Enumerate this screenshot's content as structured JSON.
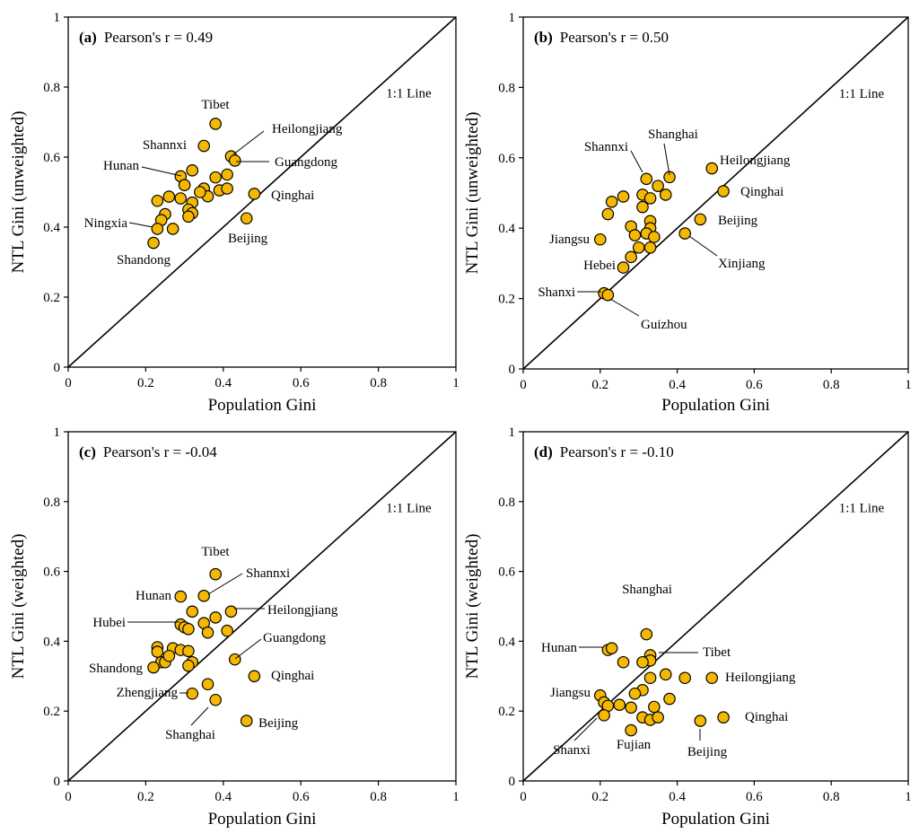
{
  "colors": {
    "marker_fill": "#F5B800",
    "marker_stroke": "#000000",
    "axis": "#000000"
  },
  "chart_data": [
    {
      "type": "scatter",
      "panel_letter": "(a)",
      "stat_text": "Pearson's r  = 0.49",
      "xlabel": "Population Gini",
      "ylabel": "NTL Gini (unweighted)",
      "xlim": [
        0,
        1
      ],
      "ylim": [
        0,
        1
      ],
      "xticks": [
        "0",
        "0.2",
        "0.4",
        "0.6",
        "0.8",
        "1"
      ],
      "yticks": [
        "0",
        "0.2",
        "0.4",
        "0.6",
        "0.8",
        "1"
      ],
      "grid": false,
      "reference_line": "1:1 Line",
      "x": [
        0.38,
        0.35,
        0.42,
        0.43,
        0.32,
        0.29,
        0.3,
        0.38,
        0.41,
        0.35,
        0.36,
        0.39,
        0.41,
        0.48,
        0.34,
        0.32,
        0.31,
        0.29,
        0.26,
        0.23,
        0.32,
        0.31,
        0.25,
        0.24,
        0.23,
        0.27,
        0.22,
        0.46
      ],
      "y": [
        0.695,
        0.632,
        0.602,
        0.59,
        0.562,
        0.545,
        0.52,
        0.542,
        0.55,
        0.51,
        0.488,
        0.505,
        0.51,
        0.495,
        0.5,
        0.47,
        0.45,
        0.482,
        0.487,
        0.475,
        0.44,
        0.43,
        0.437,
        0.42,
        0.395,
        0.395,
        0.355,
        0.425
      ],
      "labels": [
        {
          "text": "Tibet",
          "x": 0.38,
          "y": 0.695
        },
        {
          "text": "Shannxi",
          "x": 0.35,
          "y": 0.632
        },
        {
          "text": "Heilongjiang",
          "x": 0.42,
          "y": 0.602
        },
        {
          "text": "Guangdong",
          "x": 0.43,
          "y": 0.59
        },
        {
          "text": "Hunan",
          "x": 0.29,
          "y": 0.545
        },
        {
          "text": "Qinghai",
          "x": 0.48,
          "y": 0.495
        },
        {
          "text": "Ningxia",
          "x": 0.23,
          "y": 0.395
        },
        {
          "text": "Beijing",
          "x": 0.46,
          "y": 0.425
        },
        {
          "text": "Shandong",
          "x": 0.22,
          "y": 0.355
        }
      ]
    },
    {
      "type": "scatter",
      "panel_letter": "(b)",
      "stat_text": "Pearson's r = 0.50",
      "xlabel": "Population Gini",
      "ylabel": "NTL Gini (unweighted)",
      "xlim": [
        0,
        1
      ],
      "ylim": [
        0,
        1
      ],
      "xticks": [
        "0",
        "0.2",
        "0.4",
        "0.6",
        "0.8",
        "1"
      ],
      "yticks": [
        "0",
        "0.2",
        "0.4",
        "0.6",
        "0.8",
        "1"
      ],
      "grid": false,
      "reference_line": "1:1 Line",
      "x": [
        0.49,
        0.38,
        0.32,
        0.35,
        0.52,
        0.37,
        0.31,
        0.26,
        0.33,
        0.23,
        0.22,
        0.31,
        0.46,
        0.33,
        0.28,
        0.33,
        0.32,
        0.34,
        0.29,
        0.42,
        0.2,
        0.3,
        0.28,
        0.33,
        0.26,
        0.21,
        0.22
      ],
      "y": [
        0.57,
        0.545,
        0.54,
        0.52,
        0.505,
        0.495,
        0.495,
        0.49,
        0.485,
        0.475,
        0.44,
        0.46,
        0.425,
        0.42,
        0.405,
        0.4,
        0.385,
        0.375,
        0.38,
        0.385,
        0.368,
        0.345,
        0.318,
        0.345,
        0.288,
        0.215,
        0.21
      ],
      "labels": [
        {
          "text": "Shanghai",
          "x": 0.38,
          "y": 0.545
        },
        {
          "text": "Shannxi",
          "x": 0.32,
          "y": 0.54
        },
        {
          "text": "Heilongjiang",
          "x": 0.49,
          "y": 0.57
        },
        {
          "text": "Qinghai",
          "x": 0.52,
          "y": 0.505
        },
        {
          "text": "Beijing",
          "x": 0.46,
          "y": 0.425
        },
        {
          "text": "Jiangsu",
          "x": 0.2,
          "y": 0.368
        },
        {
          "text": "Xinjiang",
          "x": 0.42,
          "y": 0.385
        },
        {
          "text": "Hebei",
          "x": 0.26,
          "y": 0.288
        },
        {
          "text": "Shanxi",
          "x": 0.21,
          "y": 0.215
        },
        {
          "text": "Guizhou",
          "x": 0.22,
          "y": 0.21
        }
      ]
    },
    {
      "type": "scatter",
      "panel_letter": "(c)",
      "stat_text": "Pearson's r = -0.04",
      "xlabel": "Population Gini",
      "ylabel": "NTL Gini (weighted)",
      "xlim": [
        0,
        1
      ],
      "ylim": [
        0,
        1
      ],
      "xticks": [
        "0",
        "0.2",
        "0.4",
        "0.6",
        "0.8",
        "1"
      ],
      "yticks": [
        "0",
        "0.2",
        "0.4",
        "0.6",
        "0.8",
        "1"
      ],
      "grid": false,
      "reference_line": "1:1 Line",
      "x": [
        0.38,
        0.35,
        0.29,
        0.42,
        0.38,
        0.32,
        0.29,
        0.35,
        0.3,
        0.31,
        0.36,
        0.41,
        0.27,
        0.23,
        0.23,
        0.29,
        0.31,
        0.43,
        0.24,
        0.25,
        0.26,
        0.32,
        0.22,
        0.31,
        0.48,
        0.36,
        0.32,
        0.38,
        0.46
      ],
      "y": [
        0.592,
        0.53,
        0.528,
        0.485,
        0.468,
        0.485,
        0.448,
        0.452,
        0.44,
        0.435,
        0.425,
        0.43,
        0.38,
        0.383,
        0.37,
        0.375,
        0.372,
        0.348,
        0.34,
        0.34,
        0.358,
        0.34,
        0.325,
        0.33,
        0.3,
        0.277,
        0.25,
        0.232,
        0.172
      ],
      "labels": [
        {
          "text": "Tibet",
          "x": 0.38,
          "y": 0.592
        },
        {
          "text": "Shannxi",
          "x": 0.35,
          "y": 0.53
        },
        {
          "text": "Hunan",
          "x": 0.29,
          "y": 0.528
        },
        {
          "text": "Heilongjiang",
          "x": 0.42,
          "y": 0.485
        },
        {
          "text": "Hubei",
          "x": 0.29,
          "y": 0.448
        },
        {
          "text": "Guangdong",
          "x": 0.43,
          "y": 0.348
        },
        {
          "text": "Shandong",
          "x": 0.22,
          "y": 0.325
        },
        {
          "text": "Qinghai",
          "x": 0.48,
          "y": 0.3
        },
        {
          "text": "Zhengjiang",
          "x": 0.32,
          "y": 0.25
        },
        {
          "text": "Shanghai",
          "x": 0.38,
          "y": 0.232
        },
        {
          "text": "Beijing",
          "x": 0.46,
          "y": 0.172
        }
      ]
    },
    {
      "type": "scatter",
      "panel_letter": "(d)",
      "stat_text": "Pearson's r = -0.10",
      "xlabel": "Population Gini",
      "ylabel": "NTL Gini (weighted)",
      "xlim": [
        0,
        1
      ],
      "ylim": [
        0,
        1
      ],
      "xticks": [
        "0",
        "0.2",
        "0.4",
        "0.6",
        "0.8",
        "1"
      ],
      "yticks": [
        "0",
        "0.2",
        "0.4",
        "0.6",
        "0.8",
        "1"
      ],
      "grid": false,
      "reference_line": "1:1 Line",
      "x": [
        0.32,
        0.22,
        0.23,
        0.33,
        0.33,
        0.26,
        0.31,
        0.37,
        0.33,
        0.42,
        0.49,
        0.2,
        0.31,
        0.29,
        0.21,
        0.22,
        0.25,
        0.38,
        0.28,
        0.34,
        0.21,
        0.31,
        0.33,
        0.35,
        0.28,
        0.46,
        0.52
      ],
      "y": [
        0.42,
        0.375,
        0.38,
        0.36,
        0.345,
        0.34,
        0.34,
        0.305,
        0.295,
        0.295,
        0.295,
        0.245,
        0.26,
        0.25,
        0.225,
        0.215,
        0.218,
        0.235,
        0.21,
        0.212,
        0.188,
        0.182,
        0.175,
        0.182,
        0.145,
        0.172,
        0.182
      ],
      "labels": [
        {
          "text": "Shanghai",
          "x": 0.32,
          "y": 0.42
        },
        {
          "text": "Hunan",
          "x": 0.22,
          "y": 0.375
        },
        {
          "text": "Tibet",
          "x": 0.33,
          "y": 0.36
        },
        {
          "text": "Heilongjiang",
          "x": 0.49,
          "y": 0.295
        },
        {
          "text": "Jiangsu",
          "x": 0.2,
          "y": 0.245
        },
        {
          "text": "Qinghai",
          "x": 0.52,
          "y": 0.182
        },
        {
          "text": "Shanxi",
          "x": 0.21,
          "y": 0.188
        },
        {
          "text": "Fujian",
          "x": 0.28,
          "y": 0.145
        },
        {
          "text": "Beijing",
          "x": 0.46,
          "y": 0.172
        }
      ]
    }
  ]
}
